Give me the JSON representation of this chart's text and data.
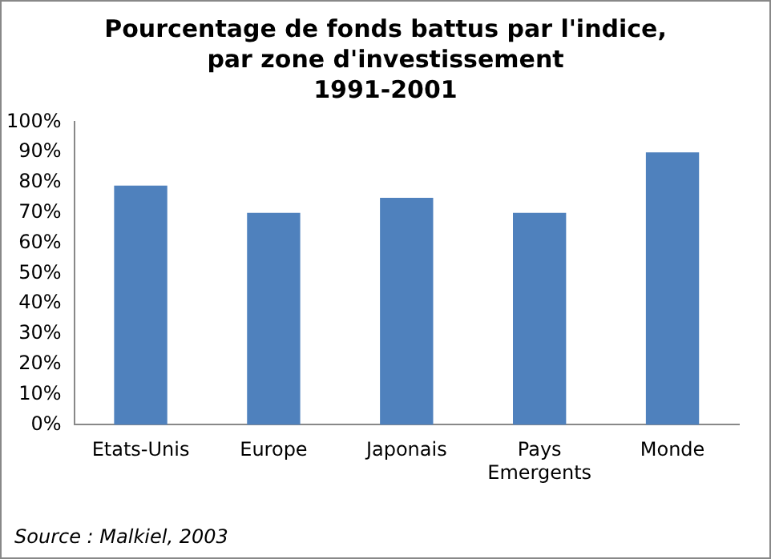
{
  "chart_data": {
    "type": "bar",
    "title": "Pourcentage de fonds battus par l'indice, par zone d'investissement",
    "subtitle": "1991-2001",
    "categories": [
      "Etats-Unis",
      "Europe",
      "Japonais",
      "Pays Emergents",
      "Monde"
    ],
    "values": [
      79,
      70,
      75,
      70,
      90
    ],
    "color": "#4f81bd",
    "ylim": [
      0,
      100
    ],
    "yticks": [
      {
        "value": 0,
        "label": "0%"
      },
      {
        "value": 10,
        "label": "10%"
      },
      {
        "value": 20,
        "label": "20%"
      },
      {
        "value": 30,
        "label": "30%"
      },
      {
        "value": 40,
        "label": "40%"
      },
      {
        "value": 50,
        "label": "50%"
      },
      {
        "value": 60,
        "label": "60%"
      },
      {
        "value": 70,
        "label": "70%"
      },
      {
        "value": 80,
        "label": "80%"
      },
      {
        "value": 90,
        "label": "90%"
      },
      {
        "value": 100,
        "label": "100%"
      }
    ],
    "grid": false,
    "legend": false,
    "annotations": [
      "Source : Malkiel, 2003"
    ]
  }
}
